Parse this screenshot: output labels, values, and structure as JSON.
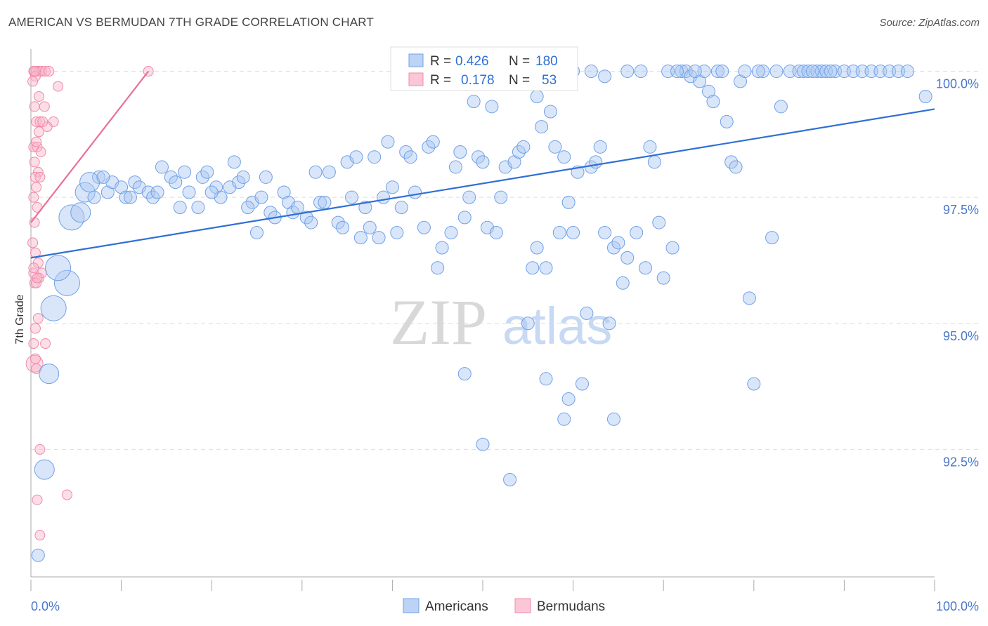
{
  "title": "AMERICAN VS BERMUDAN 7TH GRADE CORRELATION CHART",
  "source": "Source: ZipAtlas.com",
  "watermark": {
    "zip": "ZIP",
    "atlas": "atlas"
  },
  "colors": {
    "americans": "#6fa0e8",
    "bermudans": "#f08aaa",
    "americans_line": "#2f6fd6",
    "bermudans_line": "#e8709a"
  },
  "legend": {
    "rows": [
      {
        "r_label": "R =",
        "r_value": "0.426",
        "n_label": "N =",
        "n_value": "180"
      },
      {
        "r_label": "R =",
        "r_value": "0.178",
        "n_label": "N =",
        "n_value": "53"
      }
    ]
  },
  "bottom_legend": [
    "Americans",
    "Bermudans"
  ],
  "chart_data": {
    "type": "scatter",
    "title": "AMERICAN VS BERMUDAN 7TH GRADE CORRELATION CHART",
    "xlabel": "",
    "ylabel": "7th Grade",
    "xlim": [
      0,
      100
    ],
    "ylim": [
      90.0,
      100.3
    ],
    "x_tick_labels": [
      "0.0%",
      "100.0%"
    ],
    "y_ticks": [
      92.5,
      95.0,
      97.5,
      100.0
    ],
    "y_tick_labels": [
      "92.5%",
      "95.0%",
      "97.5%",
      "100.0%"
    ],
    "grid": true,
    "legend_position": "top-center",
    "series": [
      {
        "name": "Americans",
        "r": 0.426,
        "n": 180,
        "trendline": {
          "x": [
            0,
            100
          ],
          "y": [
            96.3,
            99.25
          ]
        },
        "points": [
          [
            0.8,
            90.4,
            1
          ],
          [
            1.5,
            92.1,
            2
          ],
          [
            2.0,
            94.0,
            2
          ],
          [
            2.5,
            95.3,
            3
          ],
          [
            4.0,
            95.8,
            3
          ],
          [
            3.0,
            96.1,
            3
          ],
          [
            4.5,
            97.1,
            3
          ],
          [
            5.5,
            97.2,
            2
          ],
          [
            6.0,
            97.6,
            2
          ],
          [
            7.0,
            97.5,
            1
          ],
          [
            7.5,
            97.9,
            1
          ],
          [
            8.5,
            97.6,
            1
          ],
          [
            9.0,
            97.8,
            1
          ],
          [
            10.0,
            97.7,
            1
          ],
          [
            10.5,
            97.5,
            1
          ],
          [
            11.5,
            97.8,
            1
          ],
          [
            12.0,
            97.7,
            1
          ],
          [
            13.0,
            97.6,
            1
          ],
          [
            13.5,
            97.5,
            1
          ],
          [
            14.5,
            98.1,
            1
          ],
          [
            15.5,
            97.9,
            1
          ],
          [
            16.0,
            97.8,
            1
          ],
          [
            16.5,
            97.3,
            1
          ],
          [
            17.5,
            97.6,
            1
          ],
          [
            18.5,
            97.3,
            1
          ],
          [
            19.0,
            97.9,
            1
          ],
          [
            19.5,
            98.0,
            1
          ],
          [
            20.5,
            97.7,
            1
          ],
          [
            21.0,
            97.5,
            1
          ],
          [
            22.0,
            97.7,
            1
          ],
          [
            22.5,
            98.2,
            1
          ],
          [
            23.0,
            97.8,
            1
          ],
          [
            23.5,
            97.9,
            1
          ],
          [
            24.5,
            97.4,
            1
          ],
          [
            25.0,
            96.8,
            1
          ],
          [
            25.5,
            97.5,
            1
          ],
          [
            26.5,
            97.2,
            1
          ],
          [
            27.0,
            97.1,
            1
          ],
          [
            28.0,
            97.6,
            1
          ],
          [
            28.5,
            97.4,
            1
          ],
          [
            29.0,
            97.2,
            1
          ],
          [
            29.5,
            97.3,
            1
          ],
          [
            30.5,
            97.1,
            1
          ],
          [
            31.0,
            97.0,
            1
          ],
          [
            32.0,
            97.4,
            1
          ],
          [
            32.5,
            97.4,
            1
          ],
          [
            33.0,
            98.0,
            1
          ],
          [
            34.0,
            97.0,
            1
          ],
          [
            34.5,
            96.9,
            1
          ],
          [
            35.0,
            98.2,
            1
          ],
          [
            36.0,
            98.3,
            1
          ],
          [
            36.5,
            96.7,
            1
          ],
          [
            37.0,
            97.3,
            1
          ],
          [
            38.0,
            98.3,
            1
          ],
          [
            38.5,
            96.7,
            1
          ],
          [
            39.0,
            97.5,
            1
          ],
          [
            39.5,
            98.6,
            1
          ],
          [
            40.0,
            97.7,
            1
          ],
          [
            41.0,
            97.3,
            1
          ],
          [
            41.5,
            98.4,
            1
          ],
          [
            42.0,
            98.3,
            1
          ],
          [
            42.5,
            97.6,
            1
          ],
          [
            43.5,
            96.9,
            1
          ],
          [
            44.0,
            98.5,
            1
          ],
          [
            44.5,
            98.6,
            1
          ],
          [
            45.0,
            96.1,
            1
          ],
          [
            45.5,
            96.5,
            1
          ],
          [
            46.5,
            96.8,
            1
          ],
          [
            47.0,
            98.1,
            1
          ],
          [
            47.5,
            98.4,
            1
          ],
          [
            48.0,
            97.1,
            1
          ],
          [
            48.5,
            97.5,
            1
          ],
          [
            49.5,
            98.3,
            1
          ],
          [
            50.0,
            98.2,
            1
          ],
          [
            50.5,
            96.9,
            1
          ],
          [
            51.0,
            99.3,
            1
          ],
          [
            51.5,
            96.8,
            1
          ],
          [
            52.0,
            97.5,
            1
          ],
          [
            52.5,
            98.1,
            1
          ],
          [
            53.5,
            98.2,
            1
          ],
          [
            54.0,
            98.4,
            1
          ],
          [
            54.5,
            98.5,
            1
          ],
          [
            55.0,
            95.0,
            1
          ],
          [
            55.5,
            96.1,
            1
          ],
          [
            56.0,
            96.5,
            1
          ],
          [
            56.5,
            98.9,
            1
          ],
          [
            57.0,
            96.1,
            1
          ],
          [
            57.5,
            99.2,
            1
          ],
          [
            58.0,
            98.5,
            1
          ],
          [
            58.5,
            96.8,
            1
          ],
          [
            59.0,
            98.3,
            1
          ],
          [
            59.5,
            97.4,
            1
          ],
          [
            60.0,
            96.8,
            1
          ],
          [
            60.5,
            98.0,
            1
          ],
          [
            61.0,
            93.8,
            1
          ],
          [
            61.5,
            95.2,
            1
          ],
          [
            62.0,
            98.1,
            1
          ],
          [
            62.5,
            98.2,
            1
          ],
          [
            63.0,
            98.5,
            1
          ],
          [
            63.5,
            96.8,
            1
          ],
          [
            64.0,
            95.0,
            1
          ],
          [
            64.5,
            96.5,
            1
          ],
          [
            65.0,
            96.6,
            1
          ],
          [
            65.5,
            95.8,
            1
          ],
          [
            66.0,
            96.3,
            1
          ],
          [
            67.0,
            96.8,
            1
          ],
          [
            68.0,
            96.1,
            1
          ],
          [
            68.5,
            98.5,
            1
          ],
          [
            69.0,
            98.2,
            1
          ],
          [
            69.5,
            97.0,
            1
          ],
          [
            70.0,
            95.9,
            1
          ],
          [
            71.0,
            96.5,
            1
          ],
          [
            72.0,
            100.0,
            1
          ],
          [
            72.5,
            100.0,
            1
          ],
          [
            73.0,
            99.9,
            1
          ],
          [
            74.0,
            99.8,
            1
          ],
          [
            74.5,
            100.0,
            1
          ],
          [
            75.0,
            99.6,
            1
          ],
          [
            75.5,
            99.4,
            1
          ],
          [
            76.0,
            100.0,
            1
          ],
          [
            77.0,
            99.0,
            1
          ],
          [
            77.5,
            98.2,
            1
          ],
          [
            78.0,
            98.1,
            1
          ],
          [
            78.5,
            99.8,
            1
          ],
          [
            79.0,
            100.0,
            1
          ],
          [
            79.5,
            95.5,
            1
          ],
          [
            80.0,
            93.8,
            1
          ],
          [
            81.0,
            100.0,
            1
          ],
          [
            82.0,
            96.7,
            1
          ],
          [
            83.0,
            99.3,
            1
          ],
          [
            84.0,
            100.0,
            1
          ],
          [
            85.0,
            100.0,
            1
          ],
          [
            85.5,
            100.0,
            1
          ],
          [
            86.0,
            100.0,
            1
          ],
          [
            87.0,
            100.0,
            1
          ],
          [
            87.5,
            100.0,
            1
          ],
          [
            88.0,
            100.0,
            1
          ],
          [
            89.0,
            100.0,
            1
          ],
          [
            90.0,
            100.0,
            1
          ],
          [
            91.0,
            100.0,
            1
          ],
          [
            92.0,
            100.0,
            1
          ],
          [
            93.0,
            100.0,
            1
          ],
          [
            94.0,
            100.0,
            1
          ],
          [
            95.0,
            100.0,
            1
          ],
          [
            96.0,
            100.0,
            1
          ],
          [
            97.0,
            100.0,
            1
          ],
          [
            99.0,
            99.5,
            1
          ],
          [
            48.0,
            94.0,
            1
          ],
          [
            50.0,
            92.6,
            1
          ],
          [
            53.0,
            91.9,
            1
          ],
          [
            57.0,
            93.9,
            1
          ],
          [
            59.0,
            93.1,
            1
          ],
          [
            64.5,
            93.1,
            1
          ],
          [
            59.5,
            93.5,
            1
          ],
          [
            46.0,
            100.0,
            1
          ],
          [
            49.0,
            99.4,
            1
          ],
          [
            56.0,
            99.5,
            1
          ],
          [
            54.5,
            100.0,
            1
          ],
          [
            60.0,
            100.0,
            1
          ],
          [
            62.0,
            100.0,
            1
          ],
          [
            63.5,
            99.9,
            1
          ],
          [
            66.0,
            100.0,
            1
          ],
          [
            67.5,
            100.0,
            1
          ],
          [
            70.5,
            100.0,
            1
          ],
          [
            71.5,
            100.0,
            1
          ],
          [
            73.5,
            100.0,
            1
          ],
          [
            76.5,
            100.0,
            1
          ],
          [
            80.5,
            100.0,
            1
          ],
          [
            82.5,
            100.0,
            1
          ],
          [
            86.5,
            100.0,
            1
          ],
          [
            88.5,
            100.0,
            1
          ],
          [
            6.5,
            97.8,
            2
          ],
          [
            8.0,
            97.9,
            1
          ],
          [
            11.0,
            97.5,
            1
          ],
          [
            14.0,
            97.6,
            1
          ],
          [
            17.0,
            98.0,
            1
          ],
          [
            20.0,
            97.6,
            1
          ],
          [
            24.0,
            97.3,
            1
          ],
          [
            26.0,
            97.9,
            1
          ],
          [
            31.5,
            98.0,
            1
          ],
          [
            35.5,
            97.5,
            1
          ],
          [
            37.5,
            96.9,
            1
          ],
          [
            40.5,
            96.8,
            1
          ]
        ]
      },
      {
        "name": "Bermudans",
        "r": 0.178,
        "n": 53,
        "trendline": {
          "x": [
            0,
            13
          ],
          "y": [
            97.0,
            100.0
          ]
        },
        "points": [
          [
            0.3,
            100.0,
            1
          ],
          [
            0.6,
            100.0,
            1
          ],
          [
            0.9,
            100.0,
            1
          ],
          [
            1.2,
            100.0,
            1
          ],
          [
            1.6,
            100.0,
            1
          ],
          [
            2.0,
            100.0,
            1
          ],
          [
            0.5,
            99.9,
            1
          ],
          [
            3.0,
            99.7,
            1
          ],
          [
            0.4,
            99.3,
            1
          ],
          [
            1.5,
            99.3,
            1
          ],
          [
            0.6,
            99.0,
            1
          ],
          [
            1.0,
            99.0,
            1
          ],
          [
            2.5,
            99.0,
            1
          ],
          [
            1.8,
            98.9,
            1
          ],
          [
            0.9,
            98.8,
            1
          ],
          [
            0.3,
            98.5,
            1
          ],
          [
            0.7,
            98.5,
            1
          ],
          [
            1.1,
            98.4,
            1
          ],
          [
            0.4,
            98.2,
            1
          ],
          [
            0.8,
            98.0,
            1
          ],
          [
            0.5,
            97.9,
            1
          ],
          [
            1.0,
            97.9,
            1
          ],
          [
            0.6,
            97.7,
            1
          ],
          [
            0.3,
            97.5,
            1
          ],
          [
            0.7,
            97.3,
            1
          ],
          [
            0.4,
            97.0,
            1
          ],
          [
            0.2,
            96.6,
            1
          ],
          [
            0.5,
            96.4,
            1
          ],
          [
            0.8,
            96.2,
            1
          ],
          [
            0.3,
            96.0,
            1
          ],
          [
            0.9,
            95.9,
            1
          ],
          [
            0.4,
            95.8,
            1
          ],
          [
            0.6,
            95.8,
            1
          ],
          [
            1.2,
            96.0,
            1
          ],
          [
            0.8,
            95.1,
            1
          ],
          [
            0.5,
            94.9,
            1
          ],
          [
            1.6,
            94.6,
            1
          ],
          [
            0.3,
            94.6,
            1
          ],
          [
            0.4,
            94.2,
            2
          ],
          [
            0.6,
            94.1,
            1
          ],
          [
            1.0,
            92.5,
            1
          ],
          [
            4.0,
            91.6,
            1
          ],
          [
            0.7,
            91.5,
            1
          ],
          [
            1.0,
            90.8,
            1
          ],
          [
            13.0,
            100.0,
            1
          ],
          [
            0.4,
            100.0,
            1
          ],
          [
            0.9,
            99.5,
            1
          ],
          [
            1.3,
            99.0,
            1
          ],
          [
            0.6,
            98.6,
            1
          ],
          [
            0.3,
            96.1,
            1
          ],
          [
            0.7,
            95.9,
            1
          ],
          [
            0.5,
            94.3,
            1
          ],
          [
            0.2,
            99.8,
            1
          ]
        ]
      }
    ]
  }
}
